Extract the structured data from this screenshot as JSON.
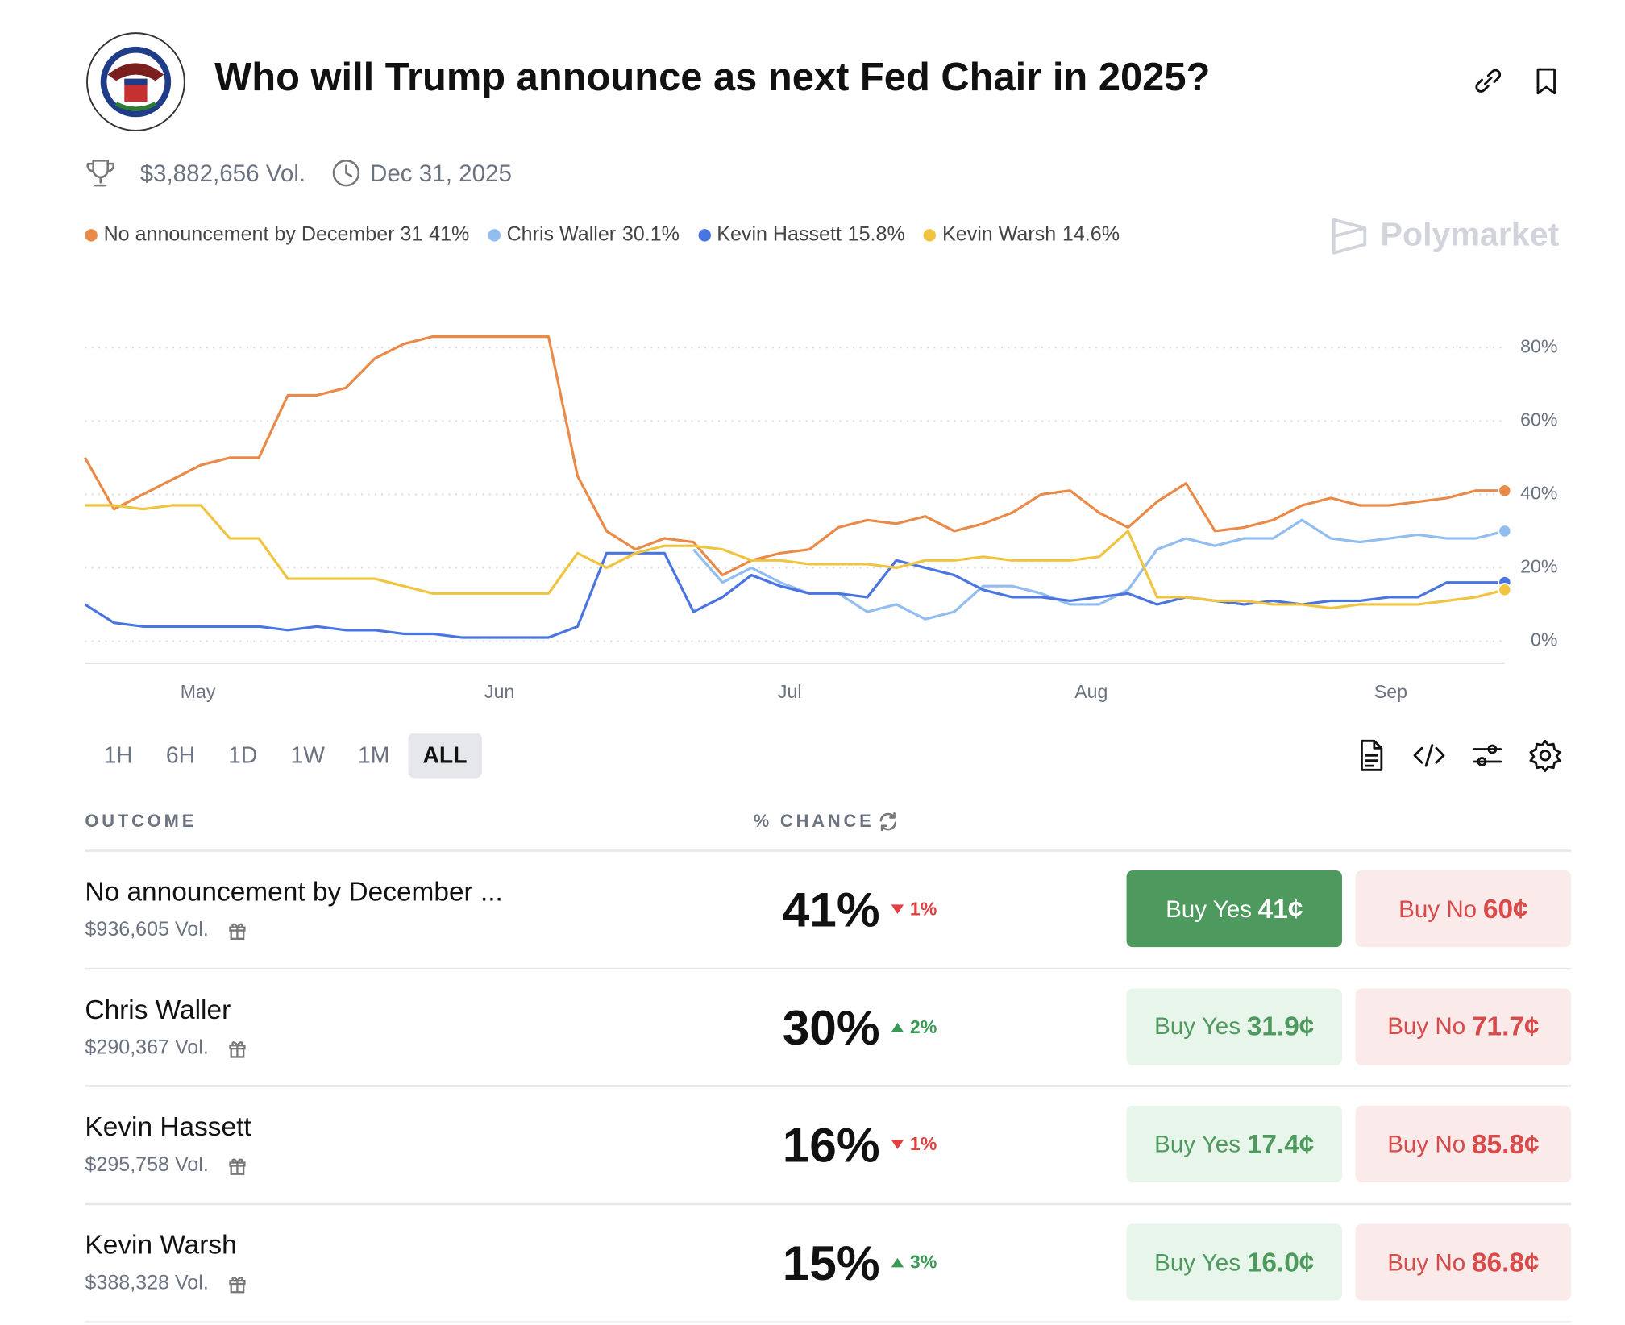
{
  "header": {
    "title": "Who will Trump announce as next Fed Chair in 2025?",
    "volume": "$3,882,656 Vol.",
    "end_date": "Dec 31, 2025",
    "watermark": "Polymarket"
  },
  "chart_data": {
    "type": "line",
    "x_labels": [
      "May",
      "Jun",
      "Jul",
      "Aug",
      "Sep"
    ],
    "ylim": [
      -6,
      90
    ],
    "yticks": [
      {
        "value": 0,
        "label": "0%"
      },
      {
        "value": 20,
        "label": "20%"
      },
      {
        "value": 40,
        "label": "40%"
      },
      {
        "value": 60,
        "label": "60%"
      },
      {
        "value": 80,
        "label": "80%"
      }
    ],
    "grid": true,
    "series": [
      {
        "name": "No announcement by December 31",
        "legend_value": "41%",
        "color": "#ea8a49",
        "values": [
          50,
          36,
          40,
          44,
          48,
          50,
          50,
          67,
          67,
          69,
          77,
          81,
          83,
          83,
          83,
          83,
          83,
          45,
          30,
          25,
          28,
          27,
          18,
          22,
          24,
          25,
          31,
          33,
          32,
          34,
          30,
          32,
          35,
          40,
          41,
          35,
          31,
          38,
          43,
          30,
          31,
          33,
          37,
          39,
          37,
          37,
          38,
          39,
          41,
          41
        ]
      },
      {
        "name": "Chris Waller",
        "legend_value": "30.1%",
        "color": "#92bdf1",
        "values": [
          null,
          null,
          null,
          null,
          null,
          null,
          null,
          null,
          null,
          null,
          null,
          null,
          null,
          null,
          null,
          null,
          null,
          null,
          null,
          null,
          null,
          25,
          16,
          20,
          16,
          13,
          13,
          8,
          10,
          6,
          8,
          15,
          15,
          13,
          10,
          10,
          14,
          25,
          28,
          26,
          28,
          28,
          33,
          28,
          27,
          28,
          29,
          28,
          28,
          30
        ]
      },
      {
        "name": "Kevin Hassett",
        "legend_value": "15.8%",
        "color": "#4a74e0",
        "values": [
          10,
          5,
          4,
          4,
          4,
          4,
          4,
          3,
          4,
          3,
          3,
          2,
          2,
          1,
          1,
          1,
          1,
          4,
          24,
          24,
          24,
          8,
          12,
          18,
          15,
          13,
          13,
          12,
          22,
          20,
          18,
          14,
          12,
          12,
          11,
          12,
          13,
          10,
          12,
          11,
          10,
          11,
          10,
          11,
          11,
          12,
          12,
          16,
          16,
          16
        ]
      },
      {
        "name": "Kevin Warsh",
        "legend_value": "14.6%",
        "color": "#f0c440",
        "values": [
          37,
          37,
          36,
          37,
          37,
          28,
          28,
          17,
          17,
          17,
          17,
          15,
          13,
          13,
          13,
          13,
          13,
          24,
          20,
          24,
          26,
          26,
          25,
          22,
          22,
          21,
          21,
          21,
          20,
          22,
          22,
          23,
          22,
          22,
          22,
          23,
          30,
          12,
          12,
          11,
          11,
          10,
          10,
          9,
          10,
          10,
          10,
          11,
          12,
          14
        ]
      }
    ]
  },
  "ranges": [
    "1H",
    "6H",
    "1D",
    "1W",
    "1M",
    "ALL"
  ],
  "active_range": "ALL",
  "table": {
    "outcome_header": "OUTCOME",
    "chance_header": "% CHANCE",
    "buy_yes_text": "Buy Yes",
    "buy_no_text": "Buy No",
    "rows": [
      {
        "name": "No announcement by December ...",
        "volume": "$936,605 Vol.",
        "chance": "41%",
        "change": -1,
        "change_label": "1%",
        "yes_price": "41¢",
        "no_price": "60¢",
        "highlight": true
      },
      {
        "name": "Chris Waller",
        "volume": "$290,367 Vol.",
        "chance": "30%",
        "change": 2,
        "change_label": "2%",
        "yes_price": "31.9¢",
        "no_price": "71.7¢",
        "highlight": false
      },
      {
        "name": "Kevin Hassett",
        "volume": "$295,758 Vol.",
        "chance": "16%",
        "change": -1,
        "change_label": "1%",
        "yes_price": "17.4¢",
        "no_price": "85.8¢",
        "highlight": false
      },
      {
        "name": "Kevin Warsh",
        "volume": "$388,328 Vol.",
        "chance": "15%",
        "change": 3,
        "change_label": "3%",
        "yes_price": "16.0¢",
        "no_price": "86.8¢",
        "highlight": false
      }
    ]
  }
}
